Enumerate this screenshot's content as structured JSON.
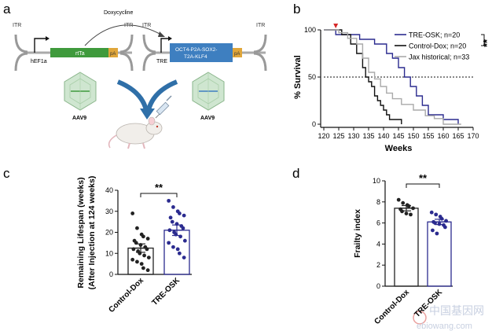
{
  "panels": {
    "a": "a",
    "b": "b",
    "c": "c",
    "d": "d"
  },
  "schematic": {
    "itr_left": "ITR",
    "itr_mid_left": "ITR",
    "itr_mid_right": "ITR",
    "itr_right": "ITR",
    "promoter_hef1a": "hEF1a",
    "gene_rtta": "rtTa",
    "pa_left": "pA",
    "promoter_tre": "TRE",
    "osk_line1": "OCT4-P2A-SOX2-",
    "osk_line2": "T2A-KLF4",
    "pa_right": "pA",
    "doxycycline": "Doxycycline",
    "aav_left": "AAV9",
    "aav_right": "AAV9",
    "colors": {
      "rtta": "#3f9a3c",
      "osk": "#3e7fc0",
      "pa": "#e0a63a",
      "arrow": "#2f6fa8"
    }
  },
  "watermark": {
    "line1": "中国基因网",
    "line2": "ebiowang.com"
  },
  "chart_data": [
    {
      "type": "line",
      "panel": "b",
      "xlabel": "Weeks",
      "ylabel": "% Survival",
      "xlim": [
        120,
        170
      ],
      "ylim": [
        0,
        100
      ],
      "xticks": [
        120,
        125,
        130,
        135,
        140,
        145,
        150,
        155,
        160,
        165,
        170
      ],
      "yticks": [
        0,
        50,
        100
      ],
      "reference_line": 50,
      "injection_marker_week": 124,
      "significance": "**",
      "legend_position": "top-right",
      "series": [
        {
          "name": "TRE-OSK; n=20",
          "color": "#2b2b8f",
          "x": [
            120,
            124,
            124,
            132,
            132,
            137,
            137,
            141,
            141,
            143,
            143,
            145,
            145,
            147,
            147,
            149,
            149,
            151,
            151,
            153,
            153,
            155,
            155,
            160,
            160,
            165,
            165
          ],
          "y": [
            100,
            100,
            95,
            95,
            90,
            90,
            85,
            85,
            75,
            75,
            70,
            70,
            60,
            60,
            50,
            50,
            40,
            40,
            30,
            30,
            20,
            20,
            10,
            10,
            5,
            5,
            0
          ]
        },
        {
          "name": "Control-Dox; n=20",
          "color": "#111111",
          "x": [
            120,
            126,
            126,
            129,
            129,
            131,
            131,
            133,
            133,
            134,
            134,
            135,
            135,
            136,
            136,
            137,
            137,
            138,
            138,
            139,
            139,
            140,
            140,
            141,
            141,
            142,
            142,
            146,
            146
          ],
          "y": [
            100,
            100,
            95,
            95,
            85,
            85,
            75,
            75,
            60,
            60,
            50,
            50,
            45,
            45,
            40,
            40,
            30,
            30,
            25,
            25,
            20,
            20,
            15,
            15,
            10,
            10,
            5,
            5,
            0
          ]
        },
        {
          "name": "Jax historical; n=33",
          "color": "#aaaaaa",
          "x": [
            120,
            125,
            125,
            128,
            128,
            131,
            131,
            133,
            133,
            135,
            135,
            137,
            137,
            139,
            139,
            141,
            141,
            143,
            143,
            146,
            146,
            150,
            150,
            154,
            154,
            157,
            157,
            160,
            160,
            166
          ],
          "y": [
            100,
            100,
            97,
            97,
            91,
            91,
            85,
            85,
            70,
            70,
            55,
            55,
            48,
            48,
            40,
            40,
            33,
            33,
            27,
            27,
            21,
            21,
            15,
            15,
            9,
            9,
            6,
            6,
            0,
            0
          ]
        }
      ]
    },
    {
      "type": "scatter",
      "panel": "c",
      "ylabel_line1": "Remaining Lifespan (weeks)",
      "ylabel_line2": "(After Injection at 124 weeks)",
      "ylim": [
        0,
        40
      ],
      "yticks": [
        0,
        10,
        20,
        30,
        40
      ],
      "categories": [
        "Control-Dox",
        "TRE-OSK"
      ],
      "significance": "**",
      "series": [
        {
          "name": "Control-Dox",
          "color": "#222222",
          "mean": 12.5,
          "sem": 2.0,
          "values": [
            29,
            22,
            19,
            18,
            17,
            16,
            15,
            14,
            13,
            12,
            12,
            11,
            10,
            9,
            8,
            7,
            6,
            5,
            3,
            2
          ]
        },
        {
          "name": "TRE-OSK",
          "color": "#2b2b8f",
          "mean": 21,
          "sem": 2.5,
          "values": [
            35,
            32,
            30,
            29,
            28,
            27,
            25,
            24,
            23,
            22,
            21,
            20,
            19,
            18,
            16,
            15,
            13,
            12,
            10,
            8
          ]
        }
      ]
    },
    {
      "type": "scatter",
      "panel": "d",
      "ylabel": "Frailty index",
      "ylim": [
        0,
        10
      ],
      "yticks": [
        0,
        2,
        4,
        6,
        8,
        10
      ],
      "categories": [
        "Control-Dox",
        "TRE-OSK"
      ],
      "significance": "**",
      "series": [
        {
          "name": "Control-Dox",
          "color": "#222222",
          "mean": 7.4,
          "sem": 0.25,
          "values": [
            8.2,
            7.9,
            7.7,
            7.6,
            7.4,
            7.3,
            7.1,
            6.9,
            6.8
          ]
        },
        {
          "name": "TRE-OSK",
          "color": "#2b2b8f",
          "mean": 6.1,
          "sem": 0.25,
          "values": [
            7.0,
            6.8,
            6.6,
            6.4,
            6.2,
            6.1,
            6.0,
            5.9,
            5.8,
            5.6,
            5.3,
            5.0
          ]
        }
      ]
    }
  ]
}
